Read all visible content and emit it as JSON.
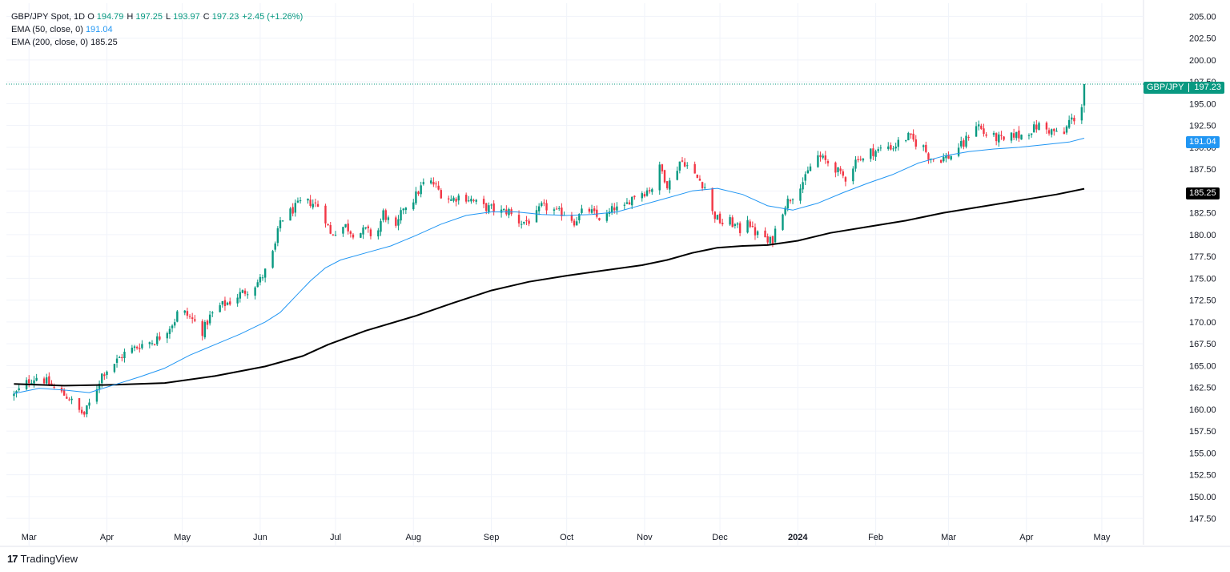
{
  "legend": {
    "symbol": "GBP/JPY Spot, 1D",
    "o_label": "O",
    "o": "194.79",
    "h_label": "H",
    "h": "197.25",
    "l_label": "L",
    "l": "193.97",
    "c_label": "C",
    "c": "197.23",
    "change": "+2.45 (+1.26%)",
    "ema50_label": "EMA (50, close, 0)",
    "ema50_value": "191.04",
    "ema200_label": "EMA (200, close, 0)",
    "ema200_value": "185.25"
  },
  "price_tag": {
    "symbol": "GBP/JPY",
    "value": "197.23"
  },
  "ema50_tag": "191.04",
  "ema200_tag": "185.25",
  "brand": "TradingView",
  "colors": {
    "up": "#089981",
    "down": "#f23645",
    "ema50": "#2196f3",
    "ema200": "#000000",
    "grid": "#f0f3fa"
  },
  "chart_data": {
    "type": "candlestick",
    "x_ticks": [
      {
        "label": "Mar",
        "day": 6
      },
      {
        "label": "Apr",
        "day": 37
      },
      {
        "label": "May",
        "day": 67
      },
      {
        "label": "Jun",
        "day": 98
      },
      {
        "label": "Jul",
        "day": 128
      },
      {
        "label": "Aug",
        "day": 159
      },
      {
        "label": "Sep",
        "day": 190
      },
      {
        "label": "Oct",
        "day": 220
      },
      {
        "label": "Nov",
        "day": 251
      },
      {
        "label": "Dec",
        "day": 281
      },
      {
        "label": "2024",
        "day": 312
      },
      {
        "label": "Feb",
        "day": 343
      },
      {
        "label": "Mar",
        "day": 372
      },
      {
        "label": "Apr",
        "day": 403
      },
      {
        "label": "May",
        "day": 433
      }
    ],
    "y_ticks": [
      "205.00",
      "202.50",
      "200.00",
      "197.50",
      "195.00",
      "192.50",
      "190.00",
      "187.50",
      "185.00",
      "182.50",
      "180.00",
      "177.50",
      "175.00",
      "172.50",
      "170.00",
      "167.50",
      "165.00",
      "162.50",
      "160.00",
      "157.50",
      "155.00",
      "152.50",
      "150.00",
      "147.50"
    ],
    "ylim": [
      146.5,
      206.5
    ],
    "xlim": [
      -3,
      448
    ],
    "price_anchors": [
      [
        0,
        161.6
      ],
      [
        6,
        163.3
      ],
      [
        10,
        163.8
      ],
      [
        14,
        162.9
      ],
      [
        18,
        162.0
      ],
      [
        22,
        161.3
      ],
      [
        25,
        160.0
      ],
      [
        28,
        159.4
      ],
      [
        32,
        161.8
      ],
      [
        35,
        164.0
      ],
      [
        40,
        165.3
      ],
      [
        44,
        166.4
      ],
      [
        48,
        167.0
      ],
      [
        52,
        167.6
      ],
      [
        56,
        167.8
      ],
      [
        60,
        168.8
      ],
      [
        64,
        170.2
      ],
      [
        66,
        171.8
      ],
      [
        68,
        171.0
      ],
      [
        72,
        170.0
      ],
      [
        75,
        168.9
      ],
      [
        78,
        170.6
      ],
      [
        82,
        171.8
      ],
      [
        86,
        172.3
      ],
      [
        90,
        173.2
      ],
      [
        94,
        173.8
      ],
      [
        98,
        174.8
      ],
      [
        102,
        176.8
      ],
      [
        104,
        178.8
      ],
      [
        106,
        181.6
      ],
      [
        110,
        182.6
      ],
      [
        114,
        183.6
      ],
      [
        118,
        183.7
      ],
      [
        122,
        183.2
      ],
      [
        124,
        181.8
      ],
      [
        126,
        180.0
      ],
      [
        130,
        180.8
      ],
      [
        132,
        181.0
      ],
      [
        134,
        180.4
      ],
      [
        136,
        180.0
      ],
      [
        140,
        180.5
      ],
      [
        143,
        179.8
      ],
      [
        145,
        180.5
      ],
      [
        147,
        182.5
      ],
      [
        150,
        181.2
      ],
      [
        152,
        180.5
      ],
      [
        155,
        183.2
      ],
      [
        158,
        183.6
      ],
      [
        162,
        185.4
      ],
      [
        164,
        186.2
      ],
      [
        167,
        185.8
      ],
      [
        170,
        184.7
      ],
      [
        174,
        184.0
      ],
      [
        178,
        184.5
      ],
      [
        182,
        184.0
      ],
      [
        186,
        183.2
      ],
      [
        190,
        183.0
      ],
      [
        194,
        182.6
      ],
      [
        197,
        182.7
      ],
      [
        199,
        181.8
      ],
      [
        202,
        181.4
      ],
      [
        205,
        181.6
      ],
      [
        207,
        181.8
      ],
      [
        210,
        183.2
      ],
      [
        214,
        183.0
      ],
      [
        216,
        182.5
      ],
      [
        220,
        182.5
      ],
      [
        223,
        181.5
      ],
      [
        226,
        182.5
      ],
      [
        229,
        182.8
      ],
      [
        232,
        182.0
      ],
      [
        235,
        181.8
      ],
      [
        239,
        183.1
      ],
      [
        242,
        182.5
      ],
      [
        245,
        184.0
      ],
      [
        248,
        184.8
      ],
      [
        251,
        184.9
      ],
      [
        254,
        185.4
      ],
      [
        256,
        188.0
      ],
      [
        258,
        187.2
      ],
      [
        260,
        185.8
      ],
      [
        262,
        186.2
      ],
      [
        265,
        188.4
      ],
      [
        267,
        188.3
      ],
      [
        270,
        187.0
      ],
      [
        273,
        186.2
      ],
      [
        275,
        185.5
      ],
      [
        277,
        183.8
      ],
      [
        278,
        182.5
      ],
      [
        280,
        181.8
      ],
      [
        283,
        181.0
      ],
      [
        285,
        181.5
      ],
      [
        287,
        181.0
      ],
      [
        289,
        180.5
      ],
      [
        292,
        182.0
      ],
      [
        294,
        180.5
      ],
      [
        296,
        180.0
      ],
      [
        298,
        180.5
      ],
      [
        300,
        179.0
      ],
      [
        302,
        179.5
      ],
      [
        304,
        181.5
      ],
      [
        307,
        183.5
      ],
      [
        310,
        184.5
      ],
      [
        312,
        185.5
      ],
      [
        315,
        186.4
      ],
      [
        318,
        188.5
      ],
      [
        320,
        189.0
      ],
      [
        323,
        188.4
      ],
      [
        326,
        188.0
      ],
      [
        329,
        186.8
      ],
      [
        331,
        186.5
      ],
      [
        334,
        187.9
      ],
      [
        336,
        189.0
      ],
      [
        338,
        188.5
      ],
      [
        341,
        189.5
      ],
      [
        344,
        189.6
      ],
      [
        347,
        190.2
      ],
      [
        350,
        190.0
      ],
      [
        353,
        190.8
      ],
      [
        356,
        191.2
      ],
      [
        359,
        190.5
      ],
      [
        362,
        190.0
      ],
      [
        364,
        189.0
      ],
      [
        367,
        188.5
      ],
      [
        370,
        188.8
      ],
      [
        373,
        189.0
      ],
      [
        375,
        190.0
      ],
      [
        378,
        190.3
      ],
      [
        380,
        191.5
      ],
      [
        382,
        192.8
      ],
      [
        384,
        192.5
      ],
      [
        386,
        191.6
      ],
      [
        389,
        191.2
      ],
      [
        392,
        191.0
      ],
      [
        395,
        190.5
      ],
      [
        398,
        191.5
      ],
      [
        400,
        191.3
      ],
      [
        402,
        191.5
      ],
      [
        405,
        192.0
      ],
      [
        408,
        192.5
      ],
      [
        411,
        192.0
      ],
      [
        414,
        191.8
      ],
      [
        416,
        191.3
      ],
      [
        418,
        191.5
      ],
      [
        420,
        193.0
      ],
      [
        423,
        193.5
      ],
      [
        425,
        194.8
      ],
      [
        426,
        197.23
      ]
    ],
    "ema50_anchors": [
      [
        0,
        161.8
      ],
      [
        10,
        162.4
      ],
      [
        20,
        162.2
      ],
      [
        30,
        161.9
      ],
      [
        40,
        162.8
      ],
      [
        50,
        163.7
      ],
      [
        60,
        164.7
      ],
      [
        70,
        166.2
      ],
      [
        80,
        167.4
      ],
      [
        90,
        168.6
      ],
      [
        100,
        170.0
      ],
      [
        106,
        171.1
      ],
      [
        112,
        172.9
      ],
      [
        118,
        174.7
      ],
      [
        124,
        176.2
      ],
      [
        130,
        177.1
      ],
      [
        140,
        177.9
      ],
      [
        150,
        178.7
      ],
      [
        160,
        179.9
      ],
      [
        170,
        181.2
      ],
      [
        180,
        182.2
      ],
      [
        190,
        182.6
      ],
      [
        200,
        182.6
      ],
      [
        210,
        182.3
      ],
      [
        220,
        182.2
      ],
      [
        230,
        182.3
      ],
      [
        240,
        182.6
      ],
      [
        250,
        183.4
      ],
      [
        260,
        184.2
      ],
      [
        270,
        185.0
      ],
      [
        280,
        185.3
      ],
      [
        290,
        184.6
      ],
      [
        300,
        183.3
      ],
      [
        310,
        182.8
      ],
      [
        320,
        183.6
      ],
      [
        330,
        184.8
      ],
      [
        340,
        185.9
      ],
      [
        350,
        186.9
      ],
      [
        360,
        188.2
      ],
      [
        370,
        189.0
      ],
      [
        380,
        189.5
      ],
      [
        390,
        189.8
      ],
      [
        400,
        190.0
      ],
      [
        410,
        190.3
      ],
      [
        420,
        190.6
      ],
      [
        426,
        191.04
      ]
    ],
    "ema200_anchors": [
      [
        0,
        162.9
      ],
      [
        20,
        162.7
      ],
      [
        40,
        162.8
      ],
      [
        60,
        163.0
      ],
      [
        80,
        163.8
      ],
      [
        100,
        164.9
      ],
      [
        115,
        166.1
      ],
      [
        125,
        167.4
      ],
      [
        140,
        169.0
      ],
      [
        160,
        170.7
      ],
      [
        175,
        172.2
      ],
      [
        190,
        173.6
      ],
      [
        205,
        174.6
      ],
      [
        220,
        175.3
      ],
      [
        235,
        175.9
      ],
      [
        250,
        176.5
      ],
      [
        260,
        177.1
      ],
      [
        270,
        177.9
      ],
      [
        280,
        178.5
      ],
      [
        290,
        178.7
      ],
      [
        300,
        178.8
      ],
      [
        312,
        179.3
      ],
      [
        325,
        180.2
      ],
      [
        340,
        180.9
      ],
      [
        355,
        181.6
      ],
      [
        370,
        182.5
      ],
      [
        385,
        183.2
      ],
      [
        400,
        183.9
      ],
      [
        415,
        184.6
      ],
      [
        426,
        185.25
      ]
    ]
  }
}
